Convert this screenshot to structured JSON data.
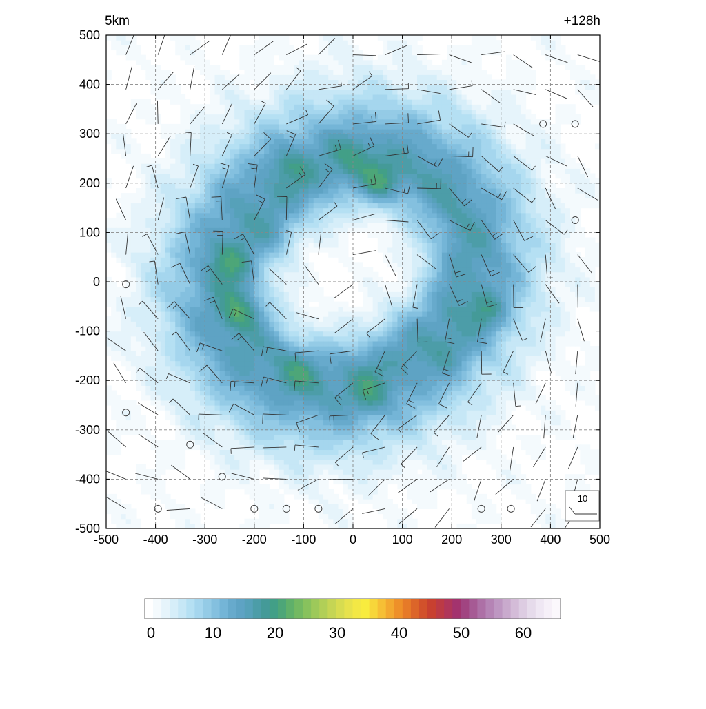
{
  "chart_data": {
    "type": "heatmap",
    "title_left": "5km",
    "title_right": "+128h",
    "xlabel": "",
    "ylabel": "",
    "xlim": [
      -500,
      500
    ],
    "ylim": [
      -500,
      500
    ],
    "x_ticks": [
      "-500",
      "-400",
      "-300",
      "-200",
      "-100",
      "0",
      "100",
      "200",
      "300",
      "400",
      "500"
    ],
    "y_ticks": [
      "500",
      "400",
      "300",
      "200",
      "100",
      "0",
      "-100",
      "-200",
      "-300",
      "-400",
      "-500"
    ],
    "grid": true,
    "grid_style": "dashed",
    "field": {
      "description_units": "filled contour, axisymmetric ring",
      "ring_center": [
        -10,
        20
      ],
      "ring_peak_radius": 230,
      "eye_radius": 90,
      "peak_value": 16,
      "blobs": [
        {
          "x": 55,
          "y": 200,
          "value": 18
        },
        {
          "x": -230,
          "y": -60,
          "value": 17
        },
        {
          "x": -250,
          "y": 40,
          "value": 16
        },
        {
          "x": 275,
          "y": -60,
          "value": 17
        },
        {
          "x": 30,
          "y": -230,
          "value": 16
        },
        {
          "x": -130,
          "y": 240,
          "value": 15
        },
        {
          "x": 0,
          "y": 260,
          "value": 15
        },
        {
          "x": -150,
          "y": 90,
          "value": 14
        },
        {
          "x": -110,
          "y": -180,
          "value": 15
        },
        {
          "x": 200,
          "y": -140,
          "value": 14
        }
      ]
    },
    "wind_barbs": {
      "grid_x": [
        -460,
        -395,
        -330,
        -265,
        -200,
        -135,
        -70,
        0,
        65,
        130,
        195,
        260,
        325,
        390,
        455
      ],
      "grid_y": [
        460,
        390,
        320,
        255,
        190,
        125,
        55,
        -5,
        -75,
        -140,
        -205,
        -270,
        -335,
        -400,
        -460
      ],
      "calm_points": [
        {
          "x": 385,
          "y": 320
        },
        {
          "x": 450,
          "y": 320
        },
        {
          "x": 450,
          "y": 125
        },
        {
          "x": -460,
          "y": -5
        },
        {
          "x": -460,
          "y": -265
        },
        {
          "x": -330,
          "y": -330
        },
        {
          "x": -265,
          "y": -395
        },
        {
          "x": -395,
          "y": -460
        },
        {
          "x": -200,
          "y": -460
        },
        {
          "x": -135,
          "y": -460
        },
        {
          "x": -70,
          "y": -460
        },
        {
          "x": 260,
          "y": -460
        },
        {
          "x": 320,
          "y": -460
        }
      ]
    },
    "reference_vector": {
      "label": "10"
    },
    "colorbar": {
      "ticks": [
        "0",
        "10",
        "20",
        "30",
        "40",
        "50",
        "60"
      ],
      "tick_values": [
        0,
        10,
        20,
        30,
        40,
        50,
        60
      ],
      "min": -1,
      "max": 66,
      "colors": [
        "#ffffff",
        "#f4fafd",
        "#e6f4fb",
        "#d6eef9",
        "#c6e7f6",
        "#b5e0f3",
        "#a5d6ee",
        "#94cbe6",
        "#84c0df",
        "#74b5d7",
        "#67aacc",
        "#5ea3c4",
        "#56a1b9",
        "#4c9da8",
        "#449a98",
        "#429f87",
        "#4da678",
        "#5fb06a",
        "#73b962",
        "#88c25d",
        "#9dc95a",
        "#b1cf57",
        "#c5d554",
        "#d7dc50",
        "#e7e24c",
        "#f3e845",
        "#f8ec3e",
        "#f7d63a",
        "#f6bf35",
        "#f3a82f",
        "#ee9029",
        "#e67a28",
        "#dc6529",
        "#d2512b",
        "#c84030",
        "#bc3a45",
        "#b0365a",
        "#a3336e",
        "#a14481",
        "#a65a94",
        "#ad70a6",
        "#b584b5",
        "#be97c2",
        "#c9aacd",
        "#d4bcd8",
        "#ddcce2",
        "#e6dbeb",
        "#efe7f3",
        "#f6f0f8",
        "#fbf8fc"
      ]
    }
  }
}
